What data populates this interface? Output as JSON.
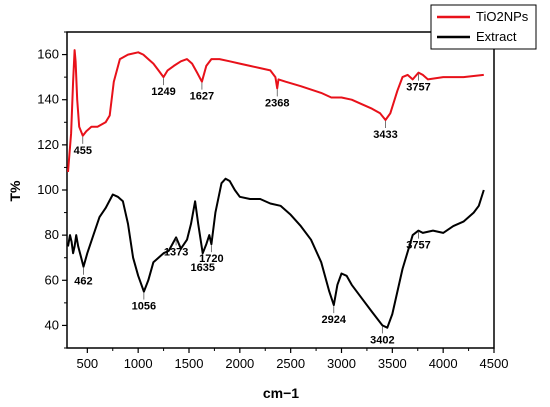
{
  "chart_data": {
    "type": "line",
    "title": "",
    "xlabel": "cm−1",
    "ylabel": "T%",
    "xlim": [
      300,
      4500
    ],
    "ylim": [
      30,
      170
    ],
    "x_ticks": [
      500,
      1000,
      1500,
      2000,
      2500,
      3000,
      3500,
      4000,
      4500
    ],
    "y_ticks": [
      40,
      60,
      80,
      100,
      120,
      140,
      160
    ],
    "grid": false,
    "legend_position": "top-right",
    "series": [
      {
        "name": "TiO2NPs",
        "color": "#e8111a",
        "points": [
          [
            310,
            108
          ],
          [
            340,
            125
          ],
          [
            360,
            148
          ],
          [
            375,
            162
          ],
          [
            385,
            157
          ],
          [
            400,
            140
          ],
          [
            420,
            128
          ],
          [
            455,
            124
          ],
          [
            490,
            126
          ],
          [
            540,
            128
          ],
          [
            600,
            128
          ],
          [
            680,
            130
          ],
          [
            720,
            133
          ],
          [
            760,
            148
          ],
          [
            820,
            158
          ],
          [
            900,
            160
          ],
          [
            1000,
            161
          ],
          [
            1050,
            160
          ],
          [
            1100,
            158
          ],
          [
            1150,
            156
          ],
          [
            1200,
            153
          ],
          [
            1249,
            150
          ],
          [
            1290,
            153
          ],
          [
            1350,
            155
          ],
          [
            1420,
            157
          ],
          [
            1480,
            158
          ],
          [
            1530,
            156
          ],
          [
            1580,
            152
          ],
          [
            1627,
            148
          ],
          [
            1670,
            155
          ],
          [
            1720,
            158
          ],
          [
            1800,
            158
          ],
          [
            1900,
            157
          ],
          [
            2000,
            156
          ],
          [
            2100,
            155
          ],
          [
            2200,
            154
          ],
          [
            2300,
            153
          ],
          [
            2350,
            150
          ],
          [
            2368,
            145
          ],
          [
            2380,
            149
          ],
          [
            2450,
            148
          ],
          [
            2600,
            146
          ],
          [
            2800,
            143
          ],
          [
            2900,
            141
          ],
          [
            3000,
            141
          ],
          [
            3100,
            140
          ],
          [
            3200,
            138
          ],
          [
            3300,
            136
          ],
          [
            3380,
            134
          ],
          [
            3433,
            131
          ],
          [
            3480,
            134
          ],
          [
            3550,
            144
          ],
          [
            3600,
            150
          ],
          [
            3650,
            151
          ],
          [
            3700,
            149
          ],
          [
            3757,
            152
          ],
          [
            3800,
            151
          ],
          [
            3850,
            149
          ],
          [
            4000,
            150
          ],
          [
            4200,
            150
          ],
          [
            4400,
            151
          ]
        ]
      },
      {
        "name": "Extract",
        "color": "#000000",
        "points": [
          [
            310,
            75
          ],
          [
            330,
            80
          ],
          [
            345,
            77
          ],
          [
            360,
            72
          ],
          [
            375,
            75
          ],
          [
            390,
            80
          ],
          [
            410,
            75
          ],
          [
            440,
            70
          ],
          [
            462,
            66
          ],
          [
            500,
            72
          ],
          [
            560,
            80
          ],
          [
            620,
            88
          ],
          [
            680,
            92
          ],
          [
            750,
            98
          ],
          [
            800,
            97
          ],
          [
            850,
            95
          ],
          [
            900,
            85
          ],
          [
            950,
            70
          ],
          [
            1000,
            62
          ],
          [
            1056,
            55
          ],
          [
            1100,
            60
          ],
          [
            1150,
            68
          ],
          [
            1200,
            70
          ],
          [
            1250,
            72
          ],
          [
            1300,
            73
          ],
          [
            1373,
            79
          ],
          [
            1420,
            74
          ],
          [
            1480,
            78
          ],
          [
            1520,
            85
          ],
          [
            1560,
            95
          ],
          [
            1590,
            85
          ],
          [
            1635,
            72
          ],
          [
            1670,
            76
          ],
          [
            1700,
            80
          ],
          [
            1720,
            76
          ],
          [
            1760,
            90
          ],
          [
            1820,
            103
          ],
          [
            1860,
            105
          ],
          [
            1900,
            104
          ],
          [
            1950,
            100
          ],
          [
            2000,
            97
          ],
          [
            2100,
            96
          ],
          [
            2200,
            96
          ],
          [
            2300,
            94
          ],
          [
            2400,
            93
          ],
          [
            2500,
            89
          ],
          [
            2600,
            84
          ],
          [
            2700,
            78
          ],
          [
            2800,
            68
          ],
          [
            2880,
            55
          ],
          [
            2924,
            49
          ],
          [
            2960,
            58
          ],
          [
            3000,
            63
          ],
          [
            3050,
            62
          ],
          [
            3100,
            58
          ],
          [
            3200,
            52
          ],
          [
            3300,
            46
          ],
          [
            3402,
            40
          ],
          [
            3450,
            39
          ],
          [
            3500,
            45
          ],
          [
            3600,
            65
          ],
          [
            3700,
            80
          ],
          [
            3757,
            82
          ],
          [
            3800,
            81
          ],
          [
            3900,
            82
          ],
          [
            4000,
            81
          ],
          [
            4100,
            84
          ],
          [
            4200,
            86
          ],
          [
            4300,
            90
          ],
          [
            4350,
            93
          ],
          [
            4400,
            100
          ]
        ]
      }
    ],
    "annotations": [
      {
        "label": "455",
        "x": 455,
        "y": 124
      },
      {
        "label": "1249",
        "x": 1249,
        "y": 150
      },
      {
        "label": "1627",
        "x": 1627,
        "y": 148
      },
      {
        "label": "2368",
        "x": 2368,
        "y": 145
      },
      {
        "label": "3433",
        "x": 3433,
        "y": 131
      },
      {
        "label": "3757",
        "x": 3757,
        "y": 152
      },
      {
        "label": "462",
        "x": 462,
        "y": 66
      },
      {
        "label": "1373",
        "x": 1373,
        "y": 79
      },
      {
        "label": "1635",
        "x": 1635,
        "y": 72
      },
      {
        "label": "1720",
        "x": 1720,
        "y": 76
      },
      {
        "label": "1056",
        "x": 1056,
        "y": 55
      },
      {
        "label": "2924",
        "x": 2924,
        "y": 49
      },
      {
        "label": "3402",
        "x": 3402,
        "y": 40
      },
      {
        "label": "3757",
        "x": 3757,
        "y": 82
      }
    ]
  }
}
